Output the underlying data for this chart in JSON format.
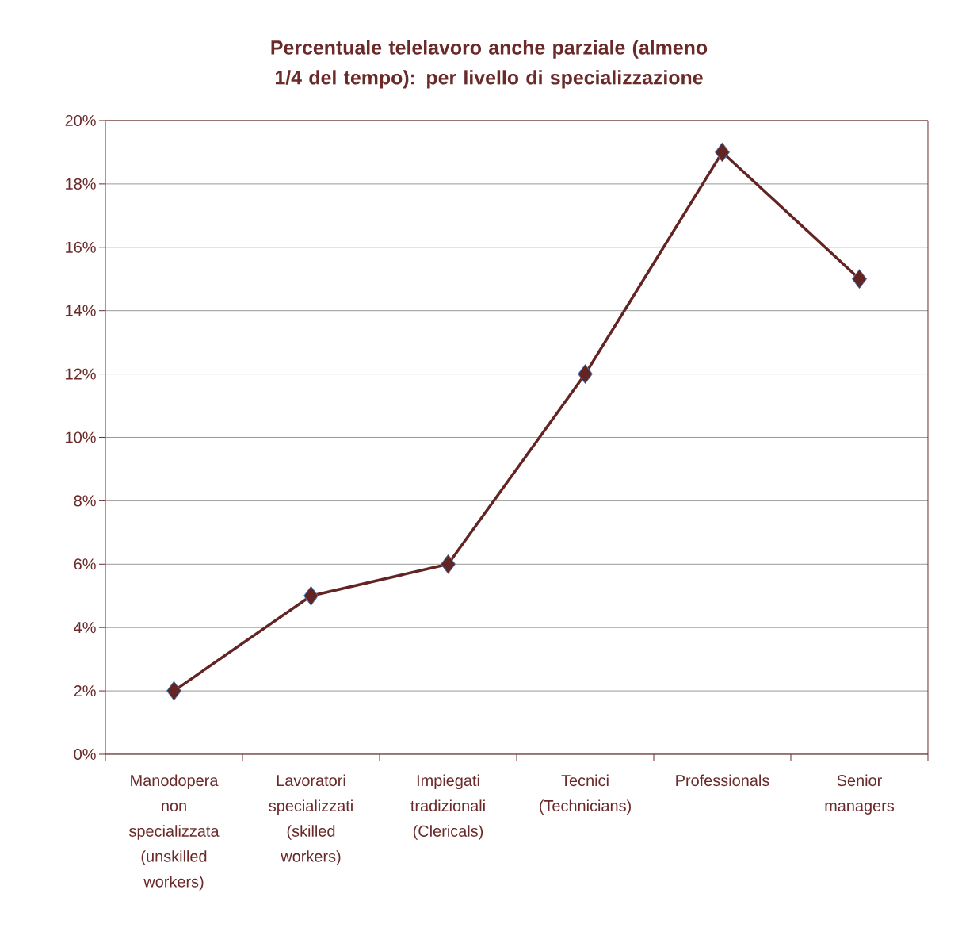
{
  "chart_data": {
    "type": "line",
    "title": "Percentuale telelavoro anche parziale (almeno 1/4 del tempo): per livello di specializzazione",
    "categories": [
      "Manodopera non specializzata (unskilled workers)",
      "Lavoratori specializzati (skilled workers)",
      "Impiegati tradizionali (Clericals)",
      "Tecnici (Technicians)",
      "Professionals",
      "Senior managers"
    ],
    "values": [
      2,
      5,
      6,
      12,
      19,
      15
    ],
    "color": "#632523",
    "ylim": [
      0,
      20
    ],
    "yticks": [
      {
        "value": 0,
        "label": "0%"
      },
      {
        "value": 2,
        "label": "2%"
      },
      {
        "value": 4,
        "label": "4%"
      },
      {
        "value": 6,
        "label": "6%"
      },
      {
        "value": 8,
        "label": "8%"
      },
      {
        "value": 10,
        "label": "10%"
      },
      {
        "value": 12,
        "label": "12%"
      },
      {
        "value": 14,
        "label": "14%"
      },
      {
        "value": 16,
        "label": "16%"
      },
      {
        "value": 18,
        "label": "18%"
      },
      {
        "value": 20,
        "label": "20%"
      }
    ],
    "grid": "y",
    "marker": "diamond",
    "line_style": "solid"
  }
}
